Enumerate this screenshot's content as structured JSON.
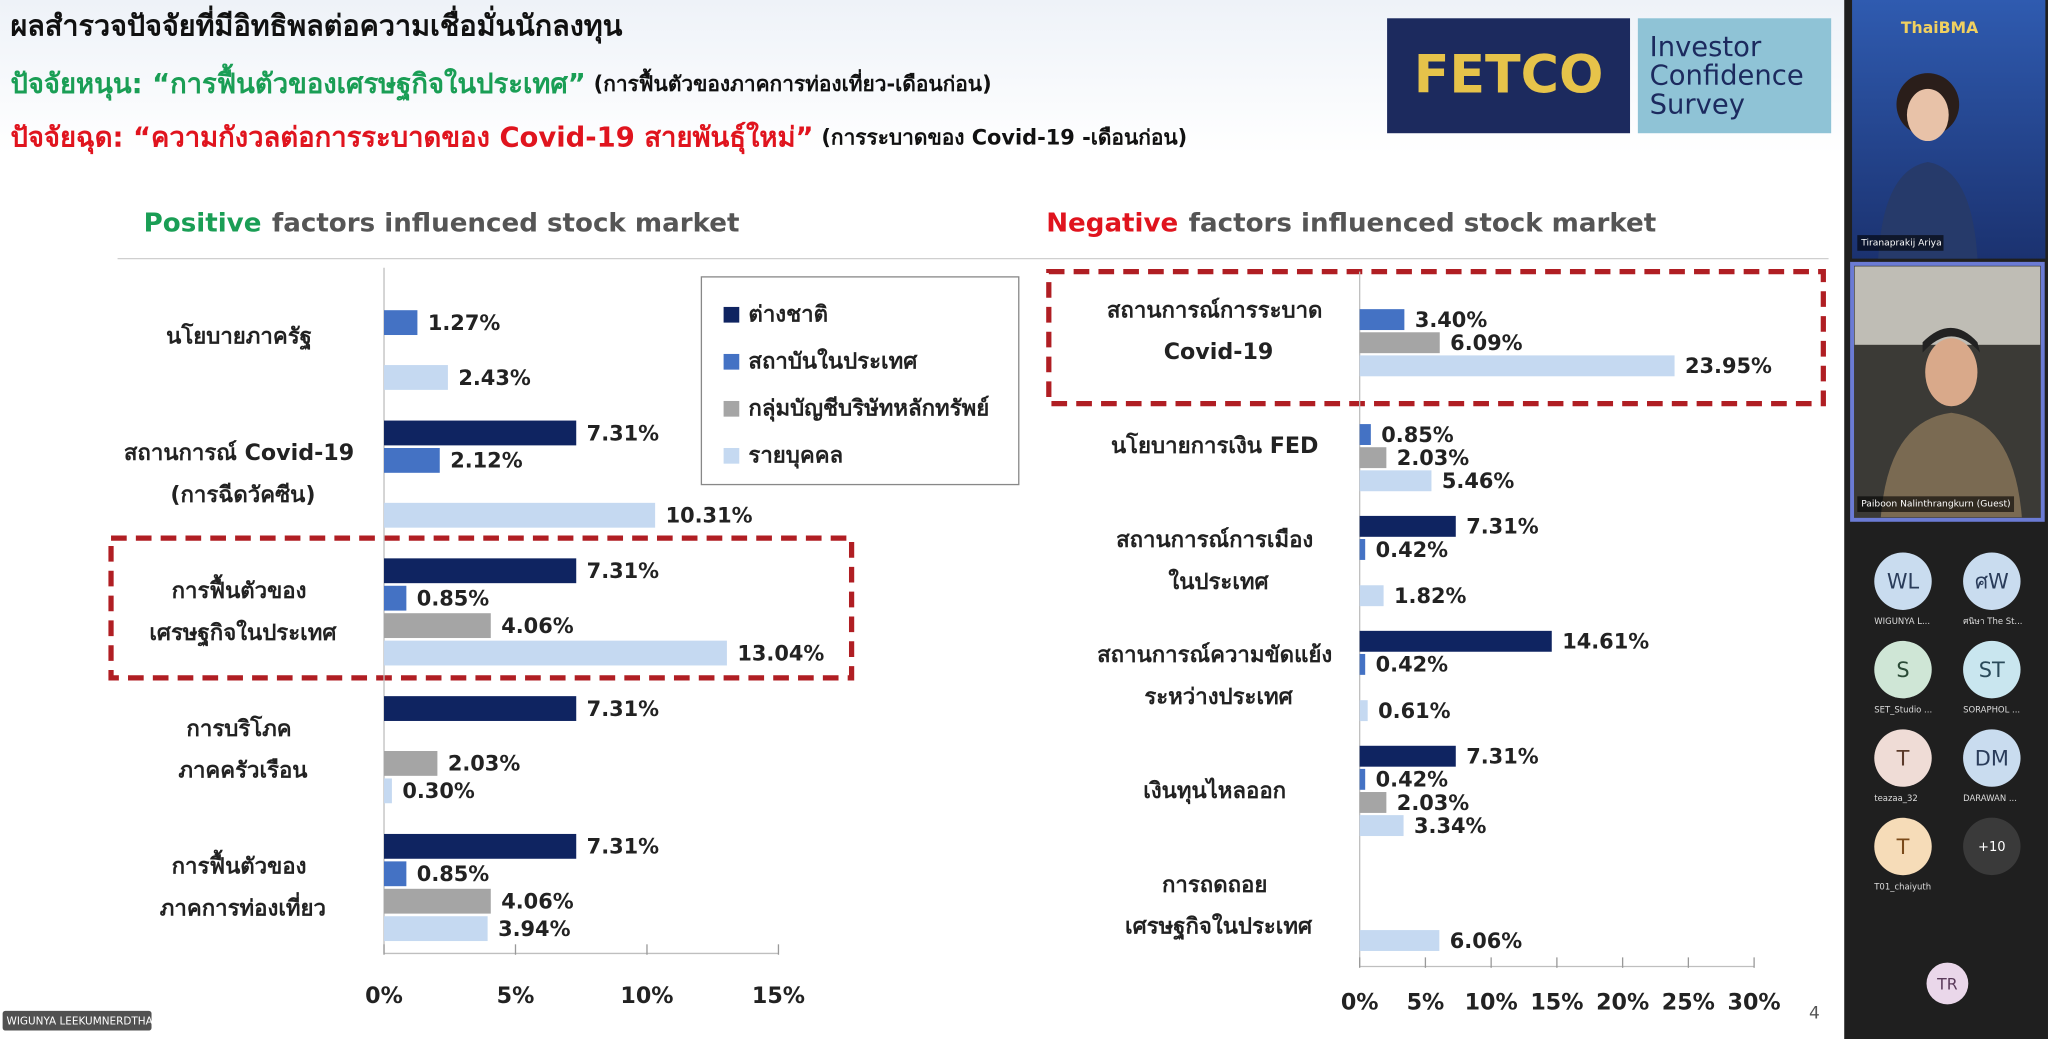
{
  "slide": {
    "title": "ผลสำรวจปัจจัยที่มีอิทธิพลต่อความเชื่อมั่นนักลงทุน",
    "driver": {
      "heading": "ปัจจัยหนุน: “การฟื้นตัวของเศรษฐกิจในประเทศ”",
      "note": "(การฟื้นตัวของภาคการท่องเที่ยว-เดือนก่อน)"
    },
    "drag": {
      "heading": "ปัจจัยฉุด: “ความกังวลต่อการระบาดของ Covid-19 สายพันธุ์ใหม่”",
      "note": "(การระบาดของ Covid-19 -เดือนก่อน)"
    },
    "logo": {
      "brand": "FETCO",
      "survey": [
        "Investor",
        "Confidence",
        "Survey"
      ]
    },
    "page_number": "4"
  },
  "chart_data": [
    {
      "type": "hbar",
      "title_highlight": "Positive",
      "title_highlight_color": "#1a9e55",
      "title": "factors influenced stock market",
      "categories": [
        "นโยบายภาครัฐ",
        "สถานการณ์ Covid-19\n(การฉีดวัคซีน)",
        "การฟื้นตัวของ\nเศรษฐกิจในประเทศ",
        "การบริโภค\nภาคครัวเรือน",
        "การฟื้นตัวของ\nภาคการท่องเที่ยว"
      ],
      "series": [
        {
          "name": "ต่างชาติ",
          "color": "#0f2461",
          "values": [
            null,
            7.31,
            7.31,
            7.31,
            7.31
          ],
          "value_labels": [
            null,
            "7.31%",
            "7.31%",
            "7.31%",
            "7.31%"
          ]
        },
        {
          "name": "สถาบันในประเทศ",
          "color": "#4472c4",
          "values": [
            1.27,
            2.12,
            0.85,
            null,
            0.85
          ],
          "value_labels": [
            "1.27%",
            "2.12%",
            "0.85%",
            null,
            "0.85%"
          ]
        },
        {
          "name": "กลุ่มบัญชีบริษัทหลักทรัพย์",
          "color": "#a5a5a5",
          "values": [
            null,
            null,
            4.06,
            2.03,
            4.06
          ],
          "value_labels": [
            null,
            null,
            "4.06%",
            "2.03%",
            "4.06%"
          ]
        },
        {
          "name": "รายบุคคล",
          "color": "#c5d9f1",
          "values": [
            2.43,
            10.31,
            13.04,
            0.3,
            3.94
          ],
          "value_labels": [
            "2.43%",
            "10.31%",
            "13.04%",
            "0.30%",
            "3.94%"
          ]
        }
      ],
      "xlim": [
        0,
        15
      ],
      "xticks": [
        {
          "value": 0,
          "label": "0%"
        },
        {
          "value": 5,
          "label": "5%"
        },
        {
          "value": 10,
          "label": "10%"
        },
        {
          "value": 15,
          "label": "15%"
        }
      ],
      "legend": "right"
    },
    {
      "type": "hbar",
      "title_highlight": "Negative",
      "title_highlight_color": "#e0141e",
      "title": "factors influenced stock market",
      "categories": [
        "สถานการณ์การระบาด\nCovid-19",
        "นโยบายการเงิน FED",
        "สถานการณ์การเมือง\nในประเทศ",
        "สถานการณ์ความขัดแย้ง\nระหว่างประเทศ",
        "เงินทุนไหลออก",
        "การถดถอย\nเศรษฐกิจในประเทศ"
      ],
      "series": [
        {
          "color": "#0f2461",
          "values": [
            null,
            null,
            7.31,
            14.61,
            7.31,
            null
          ],
          "value_labels": [
            null,
            null,
            "7.31%",
            "14.61%",
            "7.31%",
            null
          ]
        },
        {
          "color": "#4472c4",
          "values": [
            3.4,
            0.85,
            0.42,
            0.42,
            0.42,
            null
          ],
          "value_labels": [
            "3.40%",
            "0.85%",
            "0.42%",
            "0.42%",
            "0.42%",
            null
          ]
        },
        {
          "color": "#a5a5a5",
          "values": [
            6.09,
            2.03,
            null,
            null,
            2.03,
            null
          ],
          "value_labels": [
            "6.09%",
            "2.03%",
            null,
            null,
            "2.03%",
            null
          ]
        },
        {
          "color": "#c5d9f1",
          "values": [
            23.95,
            5.46,
            1.82,
            0.61,
            3.34,
            6.06
          ],
          "value_labels": [
            "23.95%",
            "5.46%",
            "1.82%",
            "0.61%",
            "3.34%",
            "6.06%"
          ]
        }
      ],
      "xlim": [
        0,
        30
      ],
      "xticks": [
        {
          "value": 0,
          "label": "0%"
        },
        {
          "value": 5,
          "label": "5%"
        },
        {
          "value": 10,
          "label": "10%"
        },
        {
          "value": 15,
          "label": "15%"
        },
        {
          "value": 20,
          "label": "20%"
        },
        {
          "value": 25,
          "label": "25%"
        },
        {
          "value": 30,
          "label": "30%"
        }
      ]
    }
  ],
  "meeting": {
    "presenters": [
      {
        "tile_label": "ThaiBMA",
        "name": "Tiranaprakij Ariya"
      },
      {
        "name": "Paiboon Nalinthrangkurn (Guest)"
      }
    ],
    "participants": [
      {
        "initials": "WL",
        "name": "WIGUNYA L..."
      },
      {
        "initials": "ศW",
        "name": "ศนิษา The St..."
      },
      {
        "initials": "S",
        "name": "SET_Studio ..."
      },
      {
        "initials": "ST",
        "name": "SORAPHOL ..."
      },
      {
        "initials": "T",
        "name": "teazaa_32"
      },
      {
        "initials": "DM",
        "name": "DARAWAN ..."
      },
      {
        "initials": "T",
        "name": "T01_chaiyuth"
      }
    ],
    "more": "+10",
    "self": "TR",
    "speaker_tag": "WIGUNYA LEEKUMNERDTHAI"
  }
}
